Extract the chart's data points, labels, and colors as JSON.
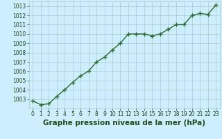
{
  "x": [
    0,
    1,
    2,
    3,
    4,
    5,
    6,
    7,
    8,
    9,
    10,
    11,
    12,
    13,
    14,
    15,
    16,
    17,
    18,
    19,
    20,
    21,
    22,
    23
  ],
  "y": [
    1002.8,
    1002.4,
    1002.5,
    1003.3,
    1004.0,
    1004.8,
    1005.5,
    1006.0,
    1007.0,
    1007.5,
    1008.3,
    1009.0,
    1010.0,
    1010.0,
    1010.0,
    1009.8,
    1010.0,
    1010.5,
    1011.0,
    1011.0,
    1012.0,
    1012.2,
    1012.1,
    1013.1
  ],
  "line_color": "#2d6a2d",
  "marker_color": "#2d6a2d",
  "bg_color": "#cceeff",
  "grid_color": "#aacccc",
  "xlabel": "Graphe pression niveau de la mer (hPa)",
  "xlabel_color": "#1a4a1a",
  "tick_label_color": "#1a4a1a",
  "ylim": [
    1002.0,
    1013.5
  ],
  "xlim": [
    -0.5,
    23.5
  ],
  "yticks": [
    1003,
    1004,
    1005,
    1006,
    1007,
    1008,
    1009,
    1010,
    1011,
    1012,
    1013
  ],
  "xticks": [
    0,
    1,
    2,
    3,
    4,
    5,
    6,
    7,
    8,
    9,
    10,
    11,
    12,
    13,
    14,
    15,
    16,
    17,
    18,
    19,
    20,
    21,
    22,
    23
  ],
  "tick_fontsize": 5.5,
  "xlabel_fontsize": 7.5,
  "line_width": 1.0,
  "marker_size": 4.0
}
